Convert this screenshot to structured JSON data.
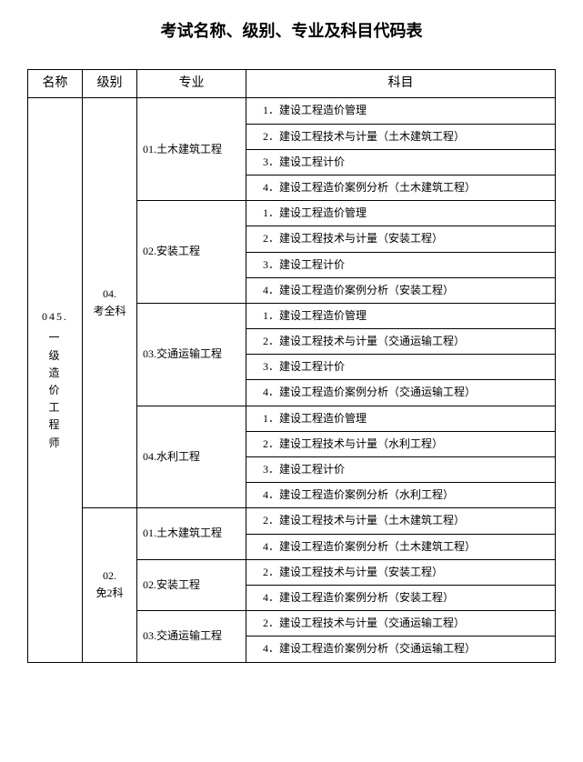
{
  "page_title": "考试名称、级别、专业及科目代码表",
  "headers": {
    "name": "名称",
    "level": "级别",
    "major": "专业",
    "subject": "科目"
  },
  "name": {
    "code": "045.",
    "label": "一级造价工程师"
  },
  "levels": {
    "l1": "04.\n考全科",
    "l2": "02.\n免2科"
  },
  "majors": {
    "m01": "01.土木建筑工程",
    "m02": "02.安装工程",
    "m03": "03.交通运输工程",
    "m04": "04.水利工程",
    "m01b": "01.土木建筑工程",
    "m02b": "02.安装工程",
    "m03b": "03.交通运输工程"
  },
  "subjects": {
    "l1_m01": [
      "1．建设工程造价管理",
      "2．建设工程技术与计量（土木建筑工程）",
      "3．建设工程计价",
      "4．建设工程造价案例分析（土木建筑工程）"
    ],
    "l1_m02": [
      "1．建设工程造价管理",
      "2．建设工程技术与计量（安装工程）",
      "3．建设工程计价",
      "4．建设工程造价案例分析（安装工程）"
    ],
    "l1_m03": [
      "1．建设工程造价管理",
      "2．建设工程技术与计量（交通运输工程）",
      "3．建设工程计价",
      "4．建设工程造价案例分析（交通运输工程）"
    ],
    "l1_m04": [
      "1．建设工程造价管理",
      "2．建设工程技术与计量（水利工程）",
      "3．建设工程计价",
      "4．建设工程造价案例分析（水利工程）"
    ],
    "l2_m01": [
      "2．建设工程技术与计量（土木建筑工程）",
      "4．建设工程造价案例分析（土木建筑工程）"
    ],
    "l2_m02": [
      "2．建设工程技术与计量（安装工程）",
      "4．建设工程造价案例分析（安装工程）"
    ],
    "l2_m03": [
      "2．建设工程技术与计量（交通运输工程）",
      "4．建设工程造价案例分析（交通运输工程）"
    ]
  }
}
